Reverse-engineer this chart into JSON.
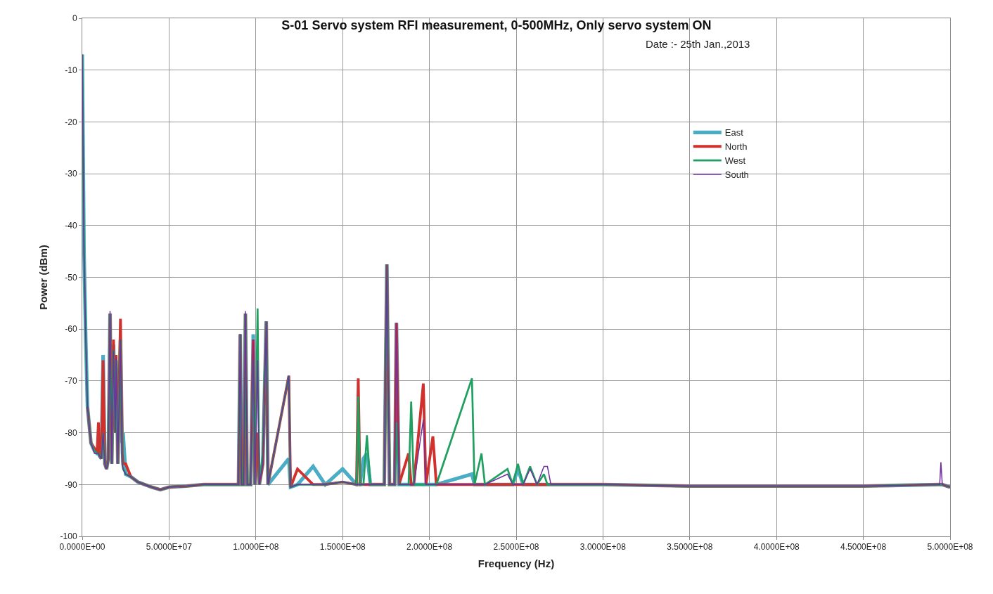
{
  "chart_data": {
    "type": "line",
    "title": "S-01 Servo system RFI measurement, 0-500MHz, Only servo system ON",
    "subtitle": "Date :- 25th Jan.,2013",
    "xlabel": "Frequency (Hz)",
    "ylabel": "Power (dBm)",
    "x": [
      0,
      1000000.0,
      2000000.0,
      3000000.0,
      5000000.0,
      7000000.0,
      8500000.0,
      9300000.0,
      10000000.0,
      11000000.0,
      12000000.0,
      13000000.0,
      14000000.0,
      15000000.0,
      16000000.0,
      17000000.0,
      18000000.0,
      19000000.0,
      19500000.0,
      20500000.0,
      22000000.0,
      23000000.0,
      23500000.0,
      25000000.0,
      28000000.0,
      32000000.0,
      36000000.0,
      40000000.0,
      45000000.0,
      50000000.0,
      60000000.0,
      70000000.0,
      80000000.0,
      89000000.0,
      90000000.0,
      91000000.0,
      91800000.0,
      93000000.0,
      94000000.0,
      95000000.0,
      97000000.0,
      98500000.0,
      99500000.0,
      101000000.0,
      102000000.0,
      104000000.0,
      106000000.0,
      107000000.0,
      119000000.0,
      120000000.0,
      124000000.0,
      133000000.0,
      140000000.0,
      150000000.0,
      158000000.0,
      159000000.0,
      160000000.0,
      162000000.0,
      164000000.0,
      166000000.0,
      174000000.0,
      175500000.0,
      177000000.0,
      180000000.0,
      181000000.0,
      182500000.0,
      188000000.0,
      189500000.0,
      191000000.0,
      196500000.0,
      198000000.0,
      202000000.0,
      204000000.0,
      224500000.0,
      226000000.0,
      230000000.0,
      232000000.0,
      245000000.0,
      248000000.0,
      251000000.0,
      254000000.0,
      258000000.0,
      262000000.0,
      266000000.0,
      268000000.0,
      270000000.0,
      300000000.0,
      350000000.0,
      400000000.0,
      450000000.0,
      494000000.0,
      494700000.0,
      495500000.0,
      500000000.0
    ],
    "series": [
      {
        "name": "East",
        "color": "#4bacc6",
        "values": [
          -7,
          -45,
          -62,
          -75,
          -82,
          -83.5,
          -84,
          -84,
          -84.5,
          -85,
          -65,
          -86,
          -87,
          -85,
          -57,
          -86,
          -63,
          -80,
          -66,
          -86,
          -62,
          -82,
          -80,
          -88,
          -88.5,
          -89.5,
          -90,
          -90.5,
          -91,
          -90.5,
          -90.3,
          -90,
          -90,
          -90,
          -90,
          -61,
          -90,
          -90,
          -57,
          -90,
          -90,
          -61,
          -90,
          -80,
          -90,
          -86,
          -58.5,
          -90,
          -85,
          -90.5,
          -90,
          -86.5,
          -90,
          -87,
          -90,
          -90,
          -90,
          -85,
          -84,
          -90,
          -90,
          -47.5,
          -90,
          -90,
          -58.8,
          -90,
          -90,
          -90,
          -90,
          -90,
          -90,
          -90,
          -90,
          -88,
          -90,
          -90,
          -90,
          -90,
          -90,
          -87,
          -90,
          -90,
          -90,
          -90,
          -90,
          -90,
          -90,
          -90.3,
          -90.3,
          -90.3,
          -90,
          -90,
          -90,
          -90.5
        ]
      },
      {
        "name": "North",
        "color": "#d0312d",
        "values": [
          null,
          null,
          null,
          -75,
          -82,
          -83,
          -84,
          -78,
          -84.5,
          -85,
          -66,
          -86,
          -87,
          -85,
          -57,
          -86,
          -62,
          -80,
          -65,
          -86,
          -58,
          -84,
          -86,
          -86,
          -88.5,
          -89.5,
          -90,
          -90.5,
          -91,
          -90.5,
          -90.3,
          -90,
          -90,
          -90,
          -90,
          -61,
          -90,
          -90,
          -57,
          -90,
          -90,
          -62,
          -90,
          -80,
          -90,
          -86,
          -58.5,
          -90,
          -69,
          -90.5,
          -87,
          -90,
          -90,
          -89.5,
          -90,
          -69.5,
          -90,
          -90,
          -90,
          -90,
          -90,
          -47.5,
          -90,
          -90,
          -58.8,
          -90,
          -84,
          -90,
          -90,
          -70.5,
          -90,
          -80.7,
          -90,
          -90,
          -90,
          -90,
          -90,
          -90,
          -90,
          -90,
          -90,
          -90,
          -90,
          -90,
          -90,
          -90,
          -90,
          -90.3,
          -90.3,
          -90.3,
          -90,
          -90,
          -90,
          -90.5
        ]
      },
      {
        "name": "West",
        "color": "#20a060",
        "values": [
          -7,
          -45,
          -62,
          -75,
          -82,
          -83.5,
          -84,
          -84,
          -84.5,
          -85,
          -80,
          -86,
          -87,
          -85,
          -57,
          -86,
          -64,
          -80,
          -66,
          -86,
          -62,
          -86,
          -87,
          -88,
          -88.5,
          -89.5,
          -90,
          -90.5,
          -91,
          -90.5,
          -90.3,
          -90,
          -90,
          -90,
          -90,
          -61,
          -90,
          -90,
          -57,
          -90,
          -90,
          -66,
          -90,
          -56,
          -90,
          -84,
          -58.5,
          -90,
          -69,
          -90.5,
          -90,
          -90,
          -90,
          -89.5,
          -90,
          -73,
          -90,
          -90,
          -80.5,
          -90,
          -90,
          -47.5,
          -90,
          -90,
          -78,
          -90,
          -90,
          -74,
          -90,
          -90,
          -90,
          -90,
          -90,
          -69.5,
          -90,
          -84,
          -90,
          -87,
          -90,
          -86,
          -90,
          -86.5,
          -90,
          -88,
          -90,
          -90,
          -90,
          -90.3,
          -90.3,
          -90.3,
          -90,
          -90,
          -90,
          -90.5
        ]
      },
      {
        "name": "South",
        "color": "#7030a0",
        "values": [
          -7,
          -45,
          -62,
          -75,
          -82,
          -84,
          -84,
          -84,
          -84.5,
          -85,
          -80,
          -86,
          -87,
          -85,
          -56.5,
          -86,
          -64,
          -80,
          -65.5,
          -86,
          -62,
          -86,
          -87,
          -88,
          -88.5,
          -89.5,
          -90,
          -90.5,
          -91,
          -90.5,
          -90.3,
          -90,
          -90,
          -90,
          -90,
          -61,
          -90,
          -90,
          -56.5,
          -90,
          -90,
          -62,
          -90,
          -66,
          -90,
          -86,
          -58.5,
          -90,
          -69,
          -90.5,
          -90,
          -90,
          -90,
          -89.5,
          -90,
          -90,
          -90,
          -90,
          -90,
          -90,
          -90,
          -47.5,
          -90,
          -90,
          -58.8,
          -90,
          -90,
          -90,
          -90,
          -77.5,
          -90,
          -90,
          -90,
          -90,
          -90,
          -90,
          -90,
          -88,
          -90,
          -90,
          -90,
          -87,
          -90,
          -86.5,
          -86.5,
          -90,
          -90,
          -90.3,
          -90.3,
          -90.3,
          -90,
          -85.7,
          -90,
          -90.5
        ]
      }
    ],
    "xlim": [
      0,
      500000000.0
    ],
    "xticks": [
      {
        "value": 0,
        "label": "0.0000E+00"
      },
      {
        "value": 50000000.0,
        "label": "5.0000E+07"
      },
      {
        "value": 100000000.0,
        "label": "1.0000E+08"
      },
      {
        "value": 150000000.0,
        "label": "1.5000E+08"
      },
      {
        "value": 200000000.0,
        "label": "2.0000E+08"
      },
      {
        "value": 250000000.0,
        "label": "2.5000E+08"
      },
      {
        "value": 300000000.0,
        "label": "3.0000E+08"
      },
      {
        "value": 350000000.0,
        "label": "3.5000E+08"
      },
      {
        "value": 400000000.0,
        "label": "4.0000E+08"
      },
      {
        "value": 450000000.0,
        "label": "4.5000E+08"
      },
      {
        "value": 500000000.0,
        "label": "5.0000E+08"
      }
    ],
    "ylim": [
      -100,
      0
    ],
    "yticks": [
      -100,
      -90,
      -80,
      -70,
      -60,
      -50,
      -40,
      -30,
      -20,
      -10,
      0
    ],
    "grid": true,
    "legend": "top right",
    "marker": "none",
    "line_style": "solid"
  }
}
